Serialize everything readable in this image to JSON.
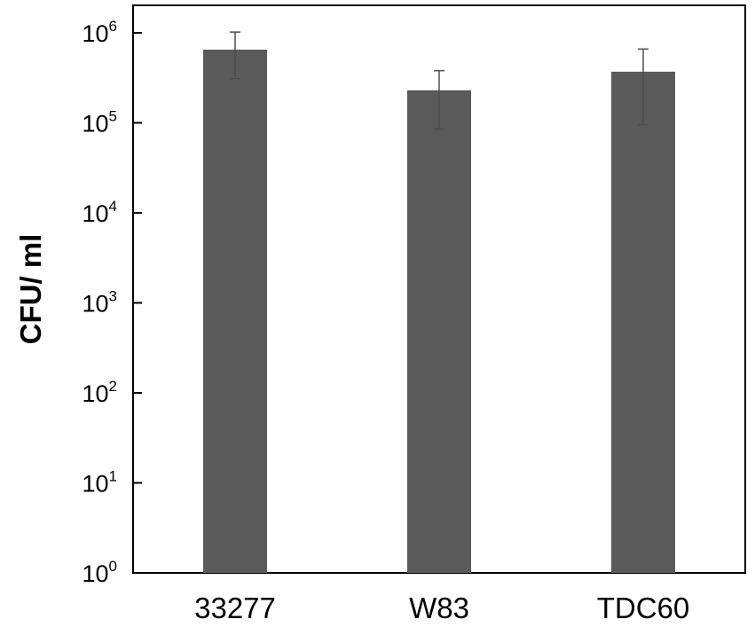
{
  "chart_data": {
    "type": "bar",
    "title": "",
    "xlabel": "",
    "ylabel": "CFU/ ml",
    "yscale": "log",
    "ylim": [
      1,
      1000000
    ],
    "yticks": [
      {
        "value": 1,
        "base": "10",
        "exp": "0"
      },
      {
        "value": 10,
        "base": "10",
        "exp": "1"
      },
      {
        "value": 100,
        "base": "10",
        "exp": "2"
      },
      {
        "value": 1000,
        "base": "10",
        "exp": "3"
      },
      {
        "value": 10000,
        "base": "10",
        "exp": "4"
      },
      {
        "value": 100000,
        "base": "10",
        "exp": "5"
      },
      {
        "value": 1000000,
        "base": "10",
        "exp": "6"
      }
    ],
    "categories": [
      "33277",
      "W83",
      "TDC60"
    ],
    "values": [
      650000,
      230000,
      370000
    ],
    "error_low": [
      310000,
      85000,
      95000
    ],
    "error_high": [
      1020000,
      380000,
      660000
    ],
    "bar_color": "#5a5a5a",
    "error_color": "#4d4d4d",
    "grid": false,
    "legend": false
  }
}
